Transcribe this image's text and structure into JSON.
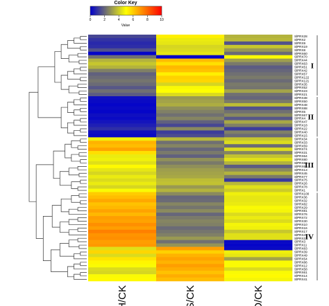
{
  "chart_data": {
    "type": "heatmap",
    "color_key": {
      "title": "Color Key",
      "axis_label": "Value",
      "ticks": [
        0,
        2,
        4,
        6,
        8,
        10
      ],
      "range": [
        0,
        10
      ],
      "colors": [
        "#0000cc",
        "#ffff00",
        "#ff0000"
      ]
    },
    "columns": [
      "H/CK",
      "S/CK",
      "D/CK"
    ],
    "rows": [
      {
        "label": "SlPRX28",
        "values": [
          1.4,
          5.3,
          3.5
        ]
      },
      {
        "label": "SlPRX2",
        "values": [
          1.0,
          4.6,
          3.6
        ]
      },
      {
        "label": "SlPRX9",
        "values": [
          0.8,
          4.5,
          1.6
        ]
      },
      {
        "label": "SlPRX19",
        "values": [
          0.9,
          4.2,
          3.9
        ]
      },
      {
        "label": "SlPRX8",
        "values": [
          1.6,
          4.3,
          3.0
        ]
      },
      {
        "label": "SlPRX60",
        "values": [
          0.1,
          4.5,
          2.1
        ]
      },
      {
        "label": "SlPRX70",
        "values": [
          2.2,
          0.1,
          5.0
        ]
      },
      {
        "label": "SlPRX44",
        "values": [
          3.5,
          6.3,
          3.1
        ]
      },
      {
        "label": "SlPRX63",
        "values": [
          3.9,
          5.6,
          2.4
        ]
      },
      {
        "label": "SlPRX51",
        "values": [
          3.5,
          6.4,
          1.8
        ]
      },
      {
        "label": "SlPRX42",
        "values": [
          2.5,
          6.2,
          2.0
        ]
      },
      {
        "label": "SlPRX57",
        "values": [
          1.9,
          5.3,
          2.2
        ]
      },
      {
        "label": "SlPRX122",
        "values": [
          2.1,
          5.9,
          2.4
        ]
      },
      {
        "label": "SlPRX121",
        "values": [
          2.3,
          5.8,
          2.1
        ]
      },
      {
        "label": "SlPRX35",
        "values": [
          2.1,
          4.2,
          2.4
        ]
      },
      {
        "label": "SlPRX52",
        "values": [
          1.7,
          4.9,
          2.3
        ]
      },
      {
        "label": "SlPRX23",
        "values": [
          2.2,
          5.0,
          3.2
        ]
      },
      {
        "label": "SlPRX21",
        "values": [
          1.8,
          4.3,
          2.2
        ]
      },
      {
        "label": "SlPRX38",
        "values": [
          0.3,
          3.0,
          2.0
        ]
      },
      {
        "label": "SlPRX50",
        "values": [
          0.2,
          3.2,
          2.4
        ]
      },
      {
        "label": "SlPRX48",
        "values": [
          0.1,
          3.4,
          3.7
        ]
      },
      {
        "label": "SlPRX88",
        "values": [
          0.2,
          2.8,
          1.6
        ]
      },
      {
        "label": "SlPRX5",
        "values": [
          0.1,
          2.5,
          2.2
        ]
      },
      {
        "label": "SlPRX67",
        "values": [
          0.3,
          2.2,
          2.7
        ]
      },
      {
        "label": "SlPRX4",
        "values": [
          0.2,
          2.6,
          1.7
        ]
      },
      {
        "label": "SlPRX47",
        "values": [
          0.4,
          1.9,
          3.3
        ]
      },
      {
        "label": "SlPRX18",
        "values": [
          0.6,
          1.4,
          2.5
        ]
      },
      {
        "label": "SlPRX22",
        "values": [
          0.9,
          2.7,
          1.2
        ]
      },
      {
        "label": "SlPRX40",
        "values": [
          0.3,
          1.2,
          2.5
        ]
      },
      {
        "label": "SlPRX15",
        "values": [
          0.2,
          1.5,
          2.1
        ]
      },
      {
        "label": "SlPRX34",
        "values": [
          4.7,
          3.6,
          3.9
        ]
      },
      {
        "label": "SlPRX33",
        "values": [
          6.5,
          2.2,
          4.3
        ]
      },
      {
        "label": "SlPRX59",
        "values": [
          6.3,
          2.6,
          2.1
        ]
      },
      {
        "label": "SlPRX74",
        "values": [
          6.8,
          2.0,
          4.3
        ]
      },
      {
        "label": "SlPRX31",
        "values": [
          5.6,
          2.4,
          2.6
        ]
      },
      {
        "label": "SlPRX64",
        "values": [
          4.6,
          1.9,
          3.8
        ]
      },
      {
        "label": "SlPRX80",
        "values": [
          4.7,
          2.8,
          4.4
        ]
      },
      {
        "label": "SlPRX66",
        "values": [
          4.4,
          2.4,
          3.5
        ]
      },
      {
        "label": "SlPRX65",
        "values": [
          5.1,
          2.8,
          1.8
        ]
      },
      {
        "label": "SlPRX13",
        "values": [
          4.5,
          3.1,
          2.7
        ]
      },
      {
        "label": "SlPRX45",
        "values": [
          4.2,
          3.2,
          3.5
        ]
      },
      {
        "label": "SlPRX77",
        "values": [
          4.6,
          3.3,
          2.4
        ]
      },
      {
        "label": "SlPRX75",
        "values": [
          4.3,
          3.7,
          1.1
        ]
      },
      {
        "label": "SlPRX26",
        "values": [
          4.6,
          3.8,
          3.6
        ]
      },
      {
        "label": "SlPRX78",
        "values": [
          4.2,
          3.0,
          4.4
        ]
      },
      {
        "label": "SlPRX1",
        "values": [
          4.9,
          3.5,
          4.0
        ]
      },
      {
        "label": "SlPRX100",
        "values": [
          6.0,
          2.7,
          4.7
        ]
      },
      {
        "label": "SlPRX36",
        "values": [
          6.3,
          2.0,
          4.5
        ]
      },
      {
        "label": "SlPRX32",
        "values": [
          6.7,
          2.1,
          4.5
        ]
      },
      {
        "label": "SlPRX82",
        "values": [
          6.2,
          2.6,
          4.6
        ]
      },
      {
        "label": "SlPRX29",
        "values": [
          6.4,
          2.3,
          4.9
        ]
      },
      {
        "label": "SlPRX81",
        "values": [
          6.8,
          2.7,
          4.8
        ]
      },
      {
        "label": "SlPRX76",
        "values": [
          6.4,
          2.0,
          4.3
        ]
      },
      {
        "label": "SlPRX72",
        "values": [
          6.9,
          2.4,
          4.6
        ]
      },
      {
        "label": "SlPRX30",
        "values": [
          6.8,
          2.6,
          4.3
        ]
      },
      {
        "label": "SlPRX10",
        "values": [
          7.2,
          2.5,
          4.8
        ]
      },
      {
        "label": "SlPRX16",
        "values": [
          6.9,
          2.1,
          4.7
        ]
      },
      {
        "label": "SlPRX17",
        "values": [
          7.5,
          2.3,
          3.9
        ]
      },
      {
        "label": "SlPRX43",
        "values": [
          7.1,
          2.5,
          4.4
        ]
      },
      {
        "label": "SlPRX37",
        "values": [
          7.2,
          3.0,
          4.4
        ]
      },
      {
        "label": "SlPRX3",
        "values": [
          6.9,
          2.2,
          0.2
        ]
      },
      {
        "label": "SlPRX11",
        "values": [
          7.0,
          2.9,
          0.1
        ]
      },
      {
        "label": "SlPRX83",
        "values": [
          4.4,
          6.9,
          0.2
        ]
      },
      {
        "label": "SlPRX39",
        "values": [
          5.8,
          5.9,
          4.7
        ]
      },
      {
        "label": "SlPRX49",
        "values": [
          4.3,
          6.5,
          4.5
        ]
      },
      {
        "label": "SlPRX54",
        "values": [
          5.5,
          6.8,
          3.2
        ]
      },
      {
        "label": "SlPRX86",
        "values": [
          5.2,
          6.5,
          4.9
        ]
      },
      {
        "label": "SlPRX12",
        "values": [
          4.9,
          6.9,
          4.9
        ]
      },
      {
        "label": "SlPRX58",
        "values": [
          4.3,
          6.6,
          4.3
        ]
      },
      {
        "label": "SlPRX61",
        "values": [
          4.2,
          6.2,
          4.9
        ]
      },
      {
        "label": "SlPRX14",
        "values": [
          4.9,
          6.6,
          5.1
        ]
      },
      {
        "label": "SlPRX41",
        "values": [
          5.1,
          6.3,
          4.8
        ]
      }
    ],
    "clusters": [
      {
        "label": "I",
        "from": 0,
        "to": 17
      },
      {
        "label": "II",
        "from": 18,
        "to": 29
      },
      {
        "label": "III",
        "from": 30,
        "to": 45
      },
      {
        "label": "IV",
        "from": 46,
        "to": 71
      }
    ]
  }
}
